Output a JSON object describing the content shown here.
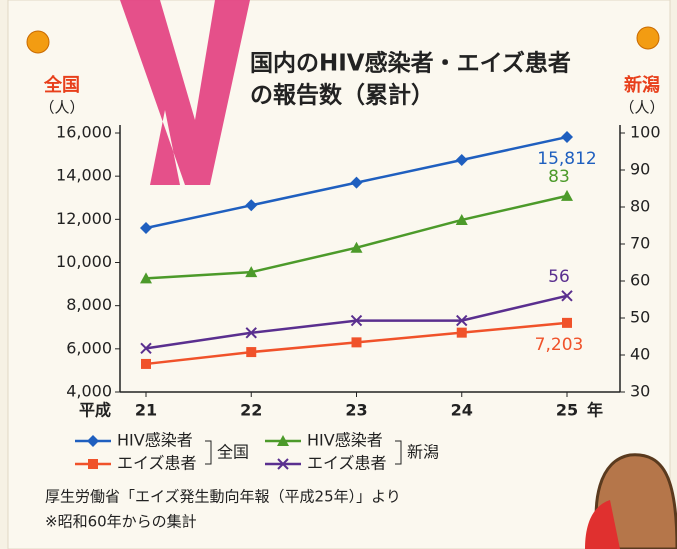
{
  "chart_data": {
    "type": "line",
    "title": [
      "国内のHIV感染者・エイズ患者",
      "の報告数（累計）"
    ],
    "ylabel": "全国",
    "ylabel_unit": "（人）",
    "y2label": "新潟",
    "y2label_unit": "（人）",
    "x_prefix": "平成",
    "x_suffix": "年",
    "categories": [
      "21",
      "22",
      "23",
      "24",
      "25"
    ],
    "ylim": [
      4000,
      16000
    ],
    "yticks": [
      {
        "value": 4000,
        "label": "4,000"
      },
      {
        "value": 6000,
        "label": "6,000"
      },
      {
        "value": 8000,
        "label": "8,000"
      },
      {
        "value": 10000,
        "label": "10,000"
      },
      {
        "value": 12000,
        "label": "12,000"
      },
      {
        "value": 14000,
        "label": "14,000"
      },
      {
        "value": 16000,
        "label": "16,000"
      }
    ],
    "y2lim": [
      30,
      100
    ],
    "y2ticks": [
      30,
      40,
      50,
      60,
      70,
      80,
      90,
      100
    ],
    "legend_groups": [
      "全国",
      "新潟"
    ],
    "series": [
      {
        "name": "HIV感染者",
        "color": "#1f5fbf",
        "marker": "diamond",
        "values": [
          11600,
          12650,
          13700,
          14750,
          15812
        ],
        "value_labels": [
          null,
          null,
          null,
          null,
          "15,812"
        ]
      },
      {
        "name": "エイズ患者",
        "color": "#f0522a",
        "marker": "square",
        "values": [
          5300,
          5850,
          6300,
          6750,
          7203
        ],
        "value_labels": [
          null,
          null,
          null,
          null,
          "7,203"
        ]
      },
      {
        "name": "HIV感染者",
        "color": "#4c9a2a",
        "marker": "triangle",
        "axis": "y2",
        "values": [
          60.7,
          62.4,
          69,
          76.5,
          83
        ],
        "value_labels": [
          null,
          null,
          null,
          null,
          "83"
        ]
      },
      {
        "name": "エイズ患者",
        "color": "#5a2f8f",
        "marker": "x",
        "axis": "y2",
        "values": [
          41.8,
          46,
          49.3,
          49.3,
          56
        ],
        "value_labels": [
          null,
          null,
          null,
          null,
          "56"
        ]
      }
    ],
    "footnotes": [
      "厚生労働省「エイズ発生動向年報（平成25年）」より",
      "※昭和60年からの集計"
    ]
  }
}
